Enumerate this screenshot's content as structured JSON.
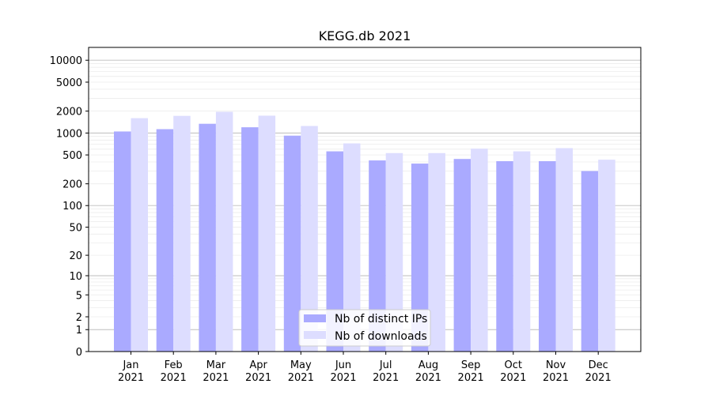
{
  "chart_data": {
    "type": "bar",
    "title": "KEGG.db 2021",
    "xlabel": "",
    "ylabel": "",
    "yscale": "log(1+y)",
    "ylim": [
      0,
      15000
    ],
    "y_ticks": [
      0,
      1,
      2,
      5,
      10,
      20,
      50,
      100,
      200,
      500,
      1000,
      2000,
      5000,
      10000
    ],
    "y_ticklabels": [
      "0",
      "1",
      "2",
      "5",
      "10",
      "20",
      "50",
      "100",
      "200",
      "500",
      "1000",
      "2000",
      "5000",
      "10000"
    ],
    "grid": "major y-lines darker, minor y-lines light",
    "legend_position": "lower-center",
    "categories": [
      "Jan\n2021",
      "Feb\n2021",
      "Mar\n2021",
      "Apr\n2021",
      "May\n2021",
      "Jun\n2021",
      "Jul\n2021",
      "Aug\n2021",
      "Sep\n2021",
      "Oct\n2021",
      "Nov\n2021",
      "Dec\n2021"
    ],
    "series": [
      {
        "name": "Nb of distinct IPs",
        "color": "#aaaaff",
        "values": [
          1050,
          1130,
          1340,
          1200,
          920,
          560,
          420,
          380,
          440,
          410,
          410,
          300
        ]
      },
      {
        "name": "Nb of downloads",
        "color": "#ddddff",
        "values": [
          1600,
          1720,
          1960,
          1730,
          1250,
          720,
          530,
          530,
          610,
          560,
          620,
          430
        ]
      }
    ]
  }
}
